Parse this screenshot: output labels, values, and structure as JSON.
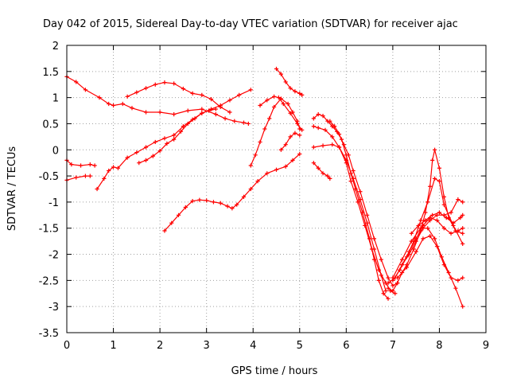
{
  "chart_data": {
    "type": "scatter",
    "title": "Day 042 of 2015, Sidereal Day-to-day VTEC variation (SDTVAR) for receiver ajac",
    "xlabel": "GPS time / hours",
    "ylabel": "SDTVAR / TECUs",
    "xlim": [
      0,
      9
    ],
    "ylim": [
      -3.5,
      2
    ],
    "x_ticks": [
      0,
      1,
      2,
      3,
      4,
      5,
      6,
      7,
      8,
      9
    ],
    "y_ticks": [
      -3.5,
      -3,
      -2.5,
      -2,
      -1.5,
      -1,
      -0.5,
      0,
      0.5,
      1,
      1.5,
      2
    ],
    "x_tick_labels": [
      "0",
      "1",
      "2",
      "3",
      "4",
      "5",
      "6",
      "7",
      "8",
      "9"
    ],
    "y_tick_labels": [
      "-3.5",
      "-3",
      "-2.5",
      "-2",
      "-1.5",
      "-1",
      "-0.5",
      "0",
      "0.5",
      "1",
      "1.5",
      "2"
    ],
    "grid": true,
    "legend": "none",
    "marker": "plus",
    "color": "#ff0000",
    "series": [
      {
        "x": [
          0.0,
          0.2,
          0.4,
          0.7,
          0.9,
          1.0,
          1.2,
          1.4,
          1.7,
          2.0,
          2.3,
          2.6,
          2.9,
          3.2,
          3.4,
          3.6,
          3.8,
          3.9
        ],
        "y": [
          1.4,
          1.3,
          1.15,
          1.0,
          0.88,
          0.85,
          0.88,
          0.8,
          0.72,
          0.72,
          0.68,
          0.75,
          0.78,
          0.68,
          0.6,
          0.55,
          0.52,
          0.5
        ]
      },
      {
        "x": [
          0.0,
          0.1,
          0.3,
          0.5,
          0.6
        ],
        "y": [
          -0.2,
          -0.28,
          -0.3,
          -0.28,
          -0.3
        ]
      },
      {
        "x": [
          0.0,
          0.2,
          0.4,
          0.5
        ],
        "y": [
          -0.58,
          -0.53,
          -0.5,
          -0.5
        ]
      },
      {
        "x": [
          0.65,
          0.8,
          0.9,
          1.0,
          1.1,
          1.3,
          1.5,
          1.7,
          1.9,
          2.1,
          2.3,
          2.5,
          2.7,
          2.9,
          3.1,
          3.3,
          3.5,
          3.7,
          3.95
        ],
        "y": [
          -0.75,
          -0.55,
          -0.4,
          -0.33,
          -0.35,
          -0.15,
          -0.05,
          0.05,
          0.15,
          0.22,
          0.28,
          0.45,
          0.58,
          0.7,
          0.78,
          0.85,
          0.95,
          1.05,
          1.15
        ]
      },
      {
        "x": [
          1.3,
          1.5,
          1.7,
          1.9,
          2.1,
          2.3,
          2.5,
          2.7,
          2.9,
          3.1,
          3.3,
          3.5
        ],
        "y": [
          1.02,
          1.1,
          1.18,
          1.25,
          1.29,
          1.27,
          1.17,
          1.08,
          1.05,
          0.97,
          0.82,
          0.72
        ]
      },
      {
        "x": [
          1.55,
          1.7,
          1.85,
          2.0,
          2.15,
          2.3,
          2.45,
          2.6,
          2.75,
          2.9,
          3.05,
          3.2
        ],
        "y": [
          -0.25,
          -0.2,
          -0.12,
          -0.02,
          0.12,
          0.2,
          0.35,
          0.5,
          0.6,
          0.7,
          0.75,
          0.78
        ]
      },
      {
        "x": [
          2.1,
          2.25,
          2.4,
          2.55,
          2.7,
          2.85,
          3.0,
          3.15,
          3.3,
          3.45,
          3.55,
          3.65,
          3.8,
          3.95,
          4.1,
          4.3,
          4.5,
          4.7,
          4.85,
          5.0
        ],
        "y": [
          -1.55,
          -1.4,
          -1.25,
          -1.1,
          -0.98,
          -0.96,
          -0.97,
          -1.0,
          -1.02,
          -1.08,
          -1.12,
          -1.05,
          -0.9,
          -0.75,
          -0.6,
          -0.45,
          -0.38,
          -0.32,
          -0.2,
          -0.08
        ]
      },
      {
        "x": [
          3.95,
          4.05,
          4.15,
          4.25,
          4.35,
          4.45,
          4.6,
          4.75,
          4.85,
          4.95,
          5.0
        ],
        "y": [
          -0.3,
          -0.1,
          0.15,
          0.4,
          0.6,
          0.82,
          0.98,
          0.88,
          0.72,
          0.55,
          0.4
        ]
      },
      {
        "x": [
          4.15,
          4.3,
          4.45,
          4.55,
          4.65,
          4.8,
          4.95,
          5.05
        ],
        "y": [
          0.85,
          0.95,
          1.02,
          1.0,
          0.88,
          0.7,
          0.5,
          0.38
        ]
      },
      {
        "x": [
          4.5,
          4.6,
          4.7,
          4.8,
          4.9,
          5.0,
          5.05
        ],
        "y": [
          1.55,
          1.45,
          1.3,
          1.18,
          1.12,
          1.08,
          1.05
        ]
      },
      {
        "x": [
          4.6,
          4.7,
          4.8,
          4.9,
          5.0
        ],
        "y": [
          0.0,
          0.1,
          0.25,
          0.32,
          0.28
        ]
      },
      {
        "x": [
          5.3,
          5.4,
          5.5,
          5.6,
          5.7,
          5.8,
          5.9,
          6.0,
          6.1,
          6.2,
          6.35,
          6.5,
          6.6,
          6.7,
          6.8,
          6.9
        ],
        "y": [
          0.6,
          0.68,
          0.65,
          0.55,
          0.45,
          0.35,
          0.2,
          -0.1,
          -0.45,
          -0.75,
          -1.2,
          -1.7,
          -2.1,
          -2.5,
          -2.75,
          -2.85
        ]
      },
      {
        "x": [
          5.3,
          5.4,
          5.55,
          5.7,
          5.85,
          6.0,
          6.15,
          6.3,
          6.45,
          6.6,
          6.75,
          6.85
        ],
        "y": [
          0.45,
          0.42,
          0.38,
          0.25,
          0.05,
          -0.2,
          -0.55,
          -0.95,
          -1.4,
          -1.9,
          -2.4,
          -2.7
        ]
      },
      {
        "x": [
          5.3,
          5.5,
          5.7,
          5.85,
          6.0,
          6.1,
          6.25,
          6.4,
          6.55,
          6.7,
          6.85,
          6.95,
          7.05
        ],
        "y": [
          0.05,
          0.08,
          0.1,
          0.05,
          -0.25,
          -0.6,
          -1.0,
          -1.45,
          -1.9,
          -2.3,
          -2.55,
          -2.7,
          -2.75
        ]
      },
      {
        "x": [
          5.3,
          5.4,
          5.5,
          5.6,
          5.65
        ],
        "y": [
          -0.25,
          -0.35,
          -0.45,
          -0.5,
          -0.55
        ]
      },
      {
        "x": [
          5.65,
          5.75,
          5.85,
          5.95,
          6.05,
          6.15,
          6.3,
          6.45,
          6.6,
          6.75,
          6.9,
          7.0,
          7.1
        ],
        "y": [
          0.55,
          0.45,
          0.3,
          0.1,
          -0.1,
          -0.4,
          -0.8,
          -1.25,
          -1.7,
          -2.1,
          -2.45,
          -2.6,
          -2.55
        ]
      },
      {
        "x": [
          6.9,
          7.0,
          7.1,
          7.2,
          7.3,
          7.45,
          7.6,
          7.7,
          7.8,
          7.85,
          7.9,
          8.0,
          8.1,
          8.2,
          8.35,
          8.5
        ],
        "y": [
          -2.65,
          -2.7,
          -2.55,
          -2.35,
          -2.2,
          -1.9,
          -1.55,
          -1.2,
          -0.7,
          -0.2,
          0.0,
          -0.35,
          -0.9,
          -1.3,
          -1.55,
          -1.6
        ]
      },
      {
        "x": [
          6.9,
          7.05,
          7.2,
          7.35,
          7.5,
          7.65,
          7.8,
          7.95,
          8.1,
          8.25,
          8.4,
          8.5
        ],
        "y": [
          -2.55,
          -2.45,
          -2.2,
          -1.95,
          -1.7,
          -1.45,
          -1.3,
          -1.35,
          -1.5,
          -1.6,
          -1.55,
          -1.5
        ]
      },
      {
        "x": [
          7.0,
          7.15,
          7.3,
          7.45,
          7.6,
          7.75,
          7.9,
          8.0,
          8.1,
          8.3,
          8.5
        ],
        "y": [
          -2.5,
          -2.3,
          -2.05,
          -1.75,
          -1.35,
          -1.0,
          -0.55,
          -0.6,
          -1.05,
          -1.45,
          -1.8
        ]
      },
      {
        "x": [
          7.0,
          7.2,
          7.4,
          7.6,
          7.75,
          7.9,
          8.05,
          8.2,
          8.35,
          8.5
        ],
        "y": [
          -2.45,
          -2.1,
          -1.75,
          -1.5,
          -1.5,
          -1.7,
          -2.05,
          -2.35,
          -2.65,
          -3.0
        ]
      },
      {
        "x": [
          7.1,
          7.3,
          7.5,
          7.65,
          7.8,
          7.95,
          8.1,
          8.25,
          8.4,
          8.5
        ],
        "y": [
          -2.45,
          -2.25,
          -1.95,
          -1.7,
          -1.65,
          -1.85,
          -2.2,
          -2.45,
          -2.5,
          -2.45
        ]
      },
      {
        "x": [
          7.2,
          7.35,
          7.5,
          7.65,
          7.8,
          7.95,
          8.1,
          8.25,
          8.4,
          8.5
        ],
        "y": [
          -2.2,
          -2.0,
          -1.75,
          -1.5,
          -1.35,
          -1.25,
          -1.25,
          -1.2,
          -0.95,
          -1.0
        ]
      },
      {
        "x": [
          7.4,
          7.55,
          7.7,
          7.85,
          8.0,
          8.15,
          8.3,
          8.45,
          8.5
        ],
        "y": [
          -1.6,
          -1.45,
          -1.35,
          -1.25,
          -1.2,
          -1.3,
          -1.4,
          -1.3,
          -1.25
        ]
      }
    ]
  }
}
